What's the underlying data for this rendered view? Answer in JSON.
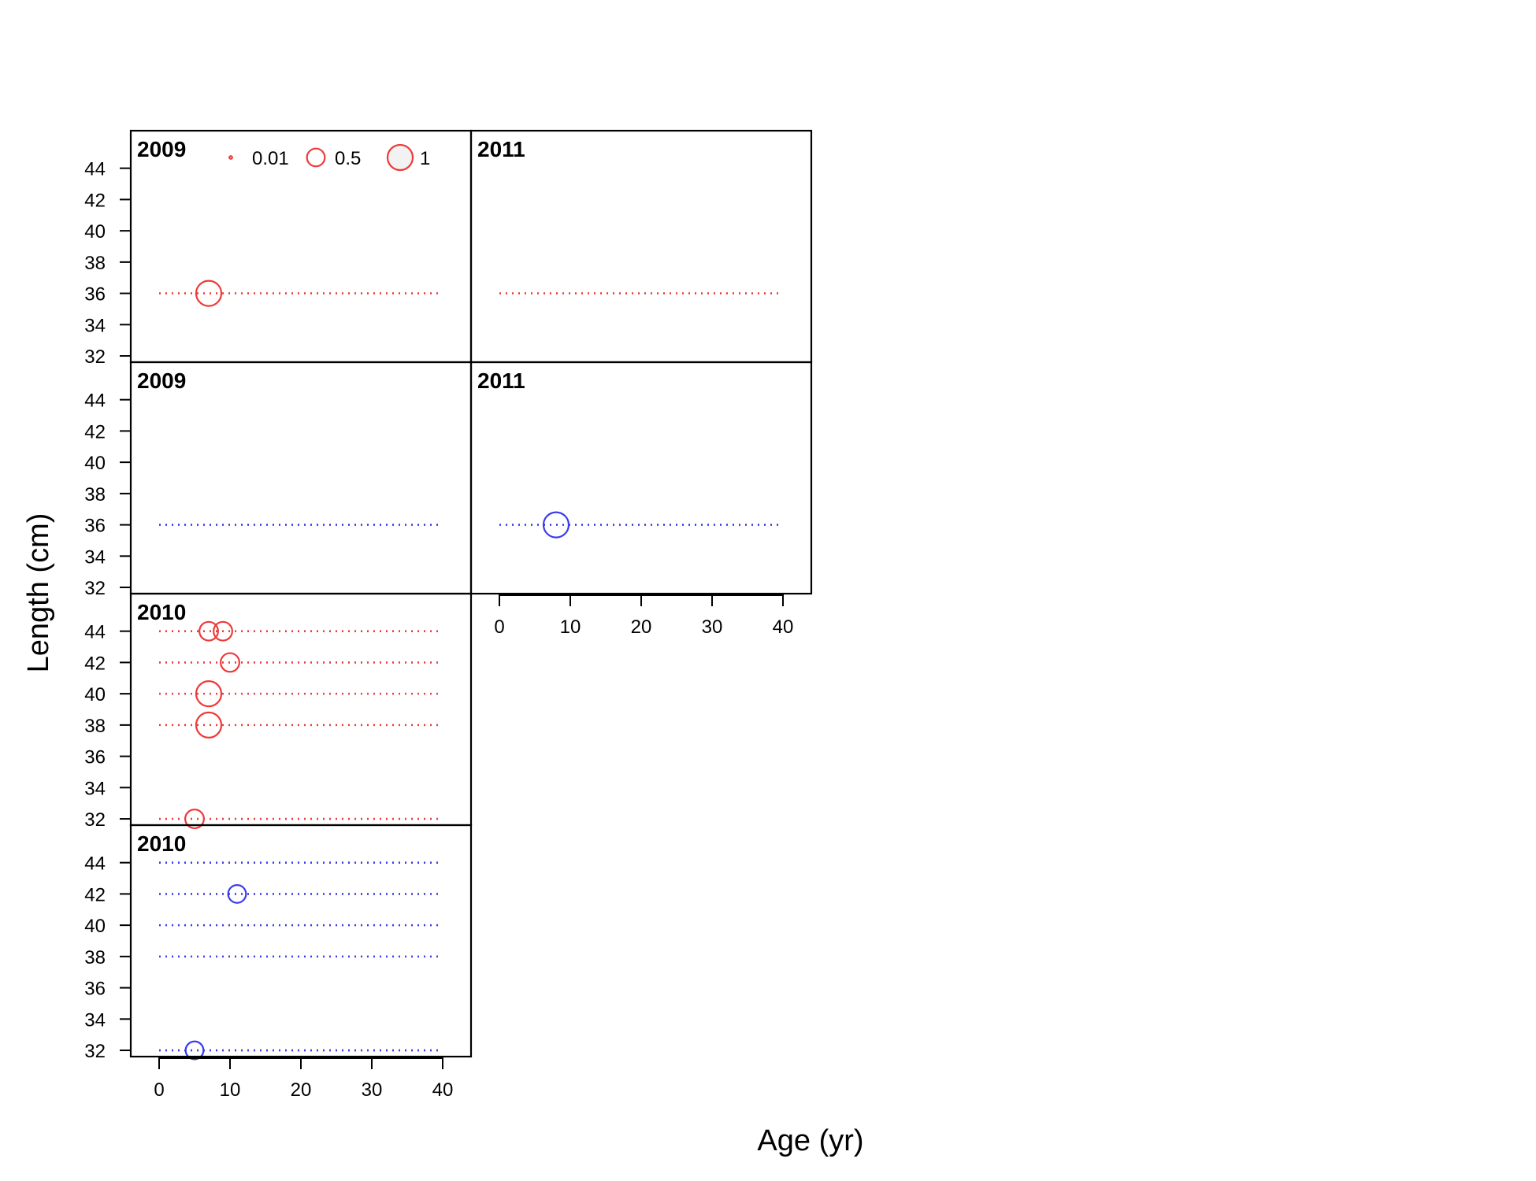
{
  "chart_data": {
    "type": "scatter",
    "subtype": "bubble",
    "xlabel": "Age (yr)",
    "ylabel": "Length (cm)",
    "xlim": [
      -4,
      44
    ],
    "ylim": [
      31.6,
      46.4
    ],
    "xticks": [
      0,
      10,
      20,
      30,
      40
    ],
    "yticks": [
      32,
      34,
      36,
      38,
      40,
      42,
      44
    ],
    "grid": false,
    "legend": {
      "placement": "top",
      "entries": [
        {
          "label": "0.01",
          "value": 0.01
        },
        {
          "label": "0.5",
          "value": 0.5
        },
        {
          "label": "1",
          "value": 1
        }
      ]
    },
    "colors": {
      "red": "#ee3a3a",
      "blue": "#3a3aee"
    },
    "panels": [
      {
        "label": "2009",
        "color": "red",
        "line_y": [
          36
        ],
        "points": [
          {
            "x": 7,
            "y": 36,
            "size": 1
          }
        ]
      },
      {
        "label": "2011",
        "color": "red",
        "line_y": [
          36
        ],
        "points": []
      },
      {
        "label": "2009",
        "color": "blue",
        "line_y": [
          36
        ],
        "points": []
      },
      {
        "label": "2011",
        "color": "blue",
        "line_y": [
          36
        ],
        "points": [
          {
            "x": 8,
            "y": 36,
            "size": 1
          }
        ]
      },
      {
        "label": "2010",
        "color": "red",
        "line_y": [
          32,
          38,
          40,
          42,
          44
        ],
        "points": [
          {
            "x": 7,
            "y": 44,
            "size": 0.55
          },
          {
            "x": 9,
            "y": 44,
            "size": 0.55
          },
          {
            "x": 10,
            "y": 42,
            "size": 0.55
          },
          {
            "x": 7,
            "y": 40,
            "size": 1
          },
          {
            "x": 7,
            "y": 38,
            "size": 1
          },
          {
            "x": 5,
            "y": 32,
            "size": 0.55
          }
        ]
      },
      {
        "label": "2010",
        "color": "blue",
        "line_y": [
          32,
          38,
          40,
          42,
          44
        ],
        "points": [
          {
            "x": 11,
            "y": 42,
            "size": 0.5
          },
          {
            "x": 5,
            "y": 32,
            "size": 0.5
          }
        ]
      }
    ]
  }
}
